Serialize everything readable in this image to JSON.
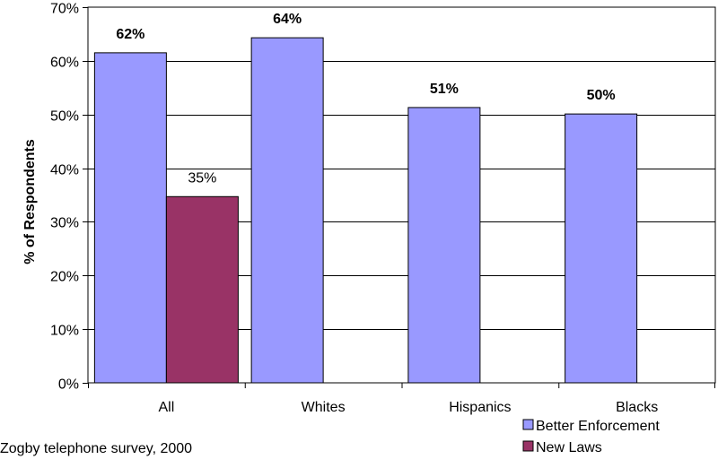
{
  "chart_data": {
    "type": "bar",
    "title": "",
    "ylabel": "% of Respondents",
    "xlabel": "",
    "ylim": [
      0,
      70
    ],
    "yticks": [
      "0%",
      "10%",
      "20%",
      "30%",
      "40%",
      "50%",
      "60%",
      "70%"
    ],
    "ytick_values": [
      0,
      10,
      20,
      30,
      40,
      50,
      60,
      70
    ],
    "categories": [
      "All",
      "Whites",
      "Hispanics",
      "Blacks"
    ],
    "series": [
      {
        "name": "Better Enforcement",
        "color": "#9999FF",
        "values": [
          61.5,
          64.3,
          51.3,
          50.1
        ],
        "labels": [
          "62%",
          "64%",
          "51%",
          "50%"
        ],
        "label_style": "bold"
      },
      {
        "name": "New Laws",
        "color": "#993366",
        "values": [
          34.7,
          null,
          null,
          null
        ],
        "labels": [
          "35%",
          null,
          null,
          null
        ],
        "label_style": "normal"
      }
    ],
    "grid": true,
    "legend_position": "bottom-right",
    "source_note": "Zogby telephone survey, 2000"
  }
}
